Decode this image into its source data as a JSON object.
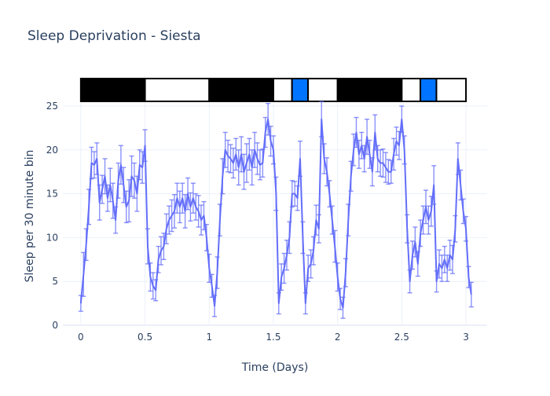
{
  "chart_data": {
    "type": "line",
    "title": "Sleep Deprivation - Siesta",
    "xlabel": "Time (Days)",
    "ylabel": "Sleep per 30 minute bin",
    "xlim": [
      -0.14,
      3.165
    ],
    "ylim": [
      0,
      25
    ],
    "x_ticks": [
      0,
      0.5,
      1,
      1.5,
      2,
      2.5,
      3
    ],
    "x_tick_labels": [
      "0",
      "0.5",
      "1",
      "1.5",
      "2",
      "2.5",
      "3"
    ],
    "y_ticks": [
      0,
      5,
      10,
      15,
      20,
      25
    ],
    "y_tick_labels": [
      "0",
      "5",
      "10",
      "15",
      "20",
      "25"
    ],
    "grid": true,
    "line_color": "#636efa",
    "x_step_days": 0.0208333,
    "series": [
      {
        "name": "sleep",
        "values": [
          2.5,
          5.8,
          9.2,
          13.5,
          18.5,
          18.3,
          19,
          14,
          15.5,
          17,
          14.5,
          16,
          14.2,
          12,
          16.5,
          18.3,
          16,
          13.5,
          14.2,
          17,
          16.5,
          15,
          18.3,
          18,
          20.5,
          9,
          5.5,
          4.5,
          4,
          7.5,
          8.5,
          9,
          11,
          12,
          12.5,
          13,
          14.5,
          13.5,
          14.5,
          13,
          15,
          13.5,
          14.5,
          13.5,
          13,
          12,
          12.5,
          10,
          6.5,
          4.5,
          2.2,
          6,
          12,
          17,
          20,
          19.3,
          19,
          18.5,
          19.5,
          18,
          19.5,
          17.5,
          18.5,
          19.5,
          18,
          20,
          19,
          18.3,
          18.5,
          22,
          23.5,
          21,
          20,
          15,
          2.5,
          5.5,
          6.5,
          8,
          10,
          15,
          15,
          14.5,
          19,
          10,
          2.5,
          6.5,
          7,
          8.5,
          12,
          11,
          23.5,
          19,
          17.5,
          15,
          12,
          9,
          5.5,
          3,
          2,
          6,
          12,
          17,
          20,
          22,
          19.5,
          20.5,
          19,
          21.5,
          19.5,
          17.5,
          22,
          19,
          18.5,
          18.5,
          18,
          17.5,
          17.5,
          19.5,
          21,
          20.5,
          23.5,
          20,
          11,
          5,
          8,
          9.5,
          7,
          10.5,
          12,
          13.5,
          12,
          13,
          16,
          5,
          7,
          6.5,
          7.5,
          6.5,
          8,
          7.5,
          11,
          19,
          16,
          13,
          11,
          5.5,
          3.5
        ],
        "errors": [
          0.9,
          2.5,
          1.8,
          2,
          1.8,
          1.5,
          1.8,
          2,
          1.6,
          2,
          1.5,
          1.9,
          2,
          1.5,
          2,
          2.2,
          2,
          1.8,
          2.4,
          2.3,
          2,
          2,
          1.7,
          1.8,
          1.8,
          2,
          1.6,
          1.5,
          1.2,
          1.5,
          1.6,
          1.5,
          1.7,
          1.6,
          1.8,
          1.9,
          1.7,
          1.8,
          1.7,
          1.9,
          1.8,
          1.6,
          1.7,
          1.5,
          1.8,
          1.7,
          1.6,
          1.5,
          1.6,
          1.3,
          1.2,
          1.8,
          1.8,
          2,
          2,
          1.8,
          1.6,
          1.7,
          1.8,
          2,
          2,
          2,
          2.2,
          1.8,
          2,
          2,
          1.8,
          1.7,
          1.6,
          1.7,
          1.8,
          1.7,
          1.6,
          1.9,
          1.2,
          1.5,
          1.7,
          1.7,
          1.8,
          1.5,
          1.4,
          1.4,
          2,
          1.8,
          1.2,
          1.5,
          1.6,
          1.6,
          1.7,
          1.6,
          2,
          1.7,
          1.6,
          1.5,
          1.6,
          1.8,
          1.6,
          1.2,
          1.2,
          1.6,
          1.8,
          1.7,
          1.8,
          1.7,
          1.6,
          1.5,
          1.5,
          2,
          1.6,
          1.6,
          2,
          1.5,
          1.5,
          1.6,
          1.7,
          1.4,
          1.3,
          1.8,
          1.6,
          1.6,
          1.5,
          1.6,
          1.6,
          1.3,
          1.6,
          1.7,
          1.4,
          1.5,
          1.6,
          1.9,
          1.6,
          1.7,
          2.2,
          1.2,
          1.6,
          1.5,
          1.5,
          1.5,
          1.7,
          1.6,
          1.5,
          1.8,
          1.7,
          1.4,
          1.4,
          1.2,
          1.4
        ]
      }
    ],
    "light_bar": [
      {
        "x0": 0,
        "x1": 0.5,
        "color": "#000000"
      },
      {
        "x0": 0.5,
        "x1": 1,
        "color": "#ffffff"
      },
      {
        "x0": 1,
        "x1": 1.5,
        "color": "#000000"
      },
      {
        "x0": 1.5,
        "x1": 1.645,
        "color": "#ffffff"
      },
      {
        "x0": 1.645,
        "x1": 1.77,
        "color": "#0074ff"
      },
      {
        "x0": 1.77,
        "x1": 2,
        "color": "#ffffff"
      },
      {
        "x0": 2,
        "x1": 2.5,
        "color": "#000000"
      },
      {
        "x0": 2.5,
        "x1": 2.645,
        "color": "#ffffff"
      },
      {
        "x0": 2.645,
        "x1": 2.77,
        "color": "#0074ff"
      },
      {
        "x0": 2.77,
        "x1": 3,
        "color": "#ffffff"
      }
    ]
  }
}
